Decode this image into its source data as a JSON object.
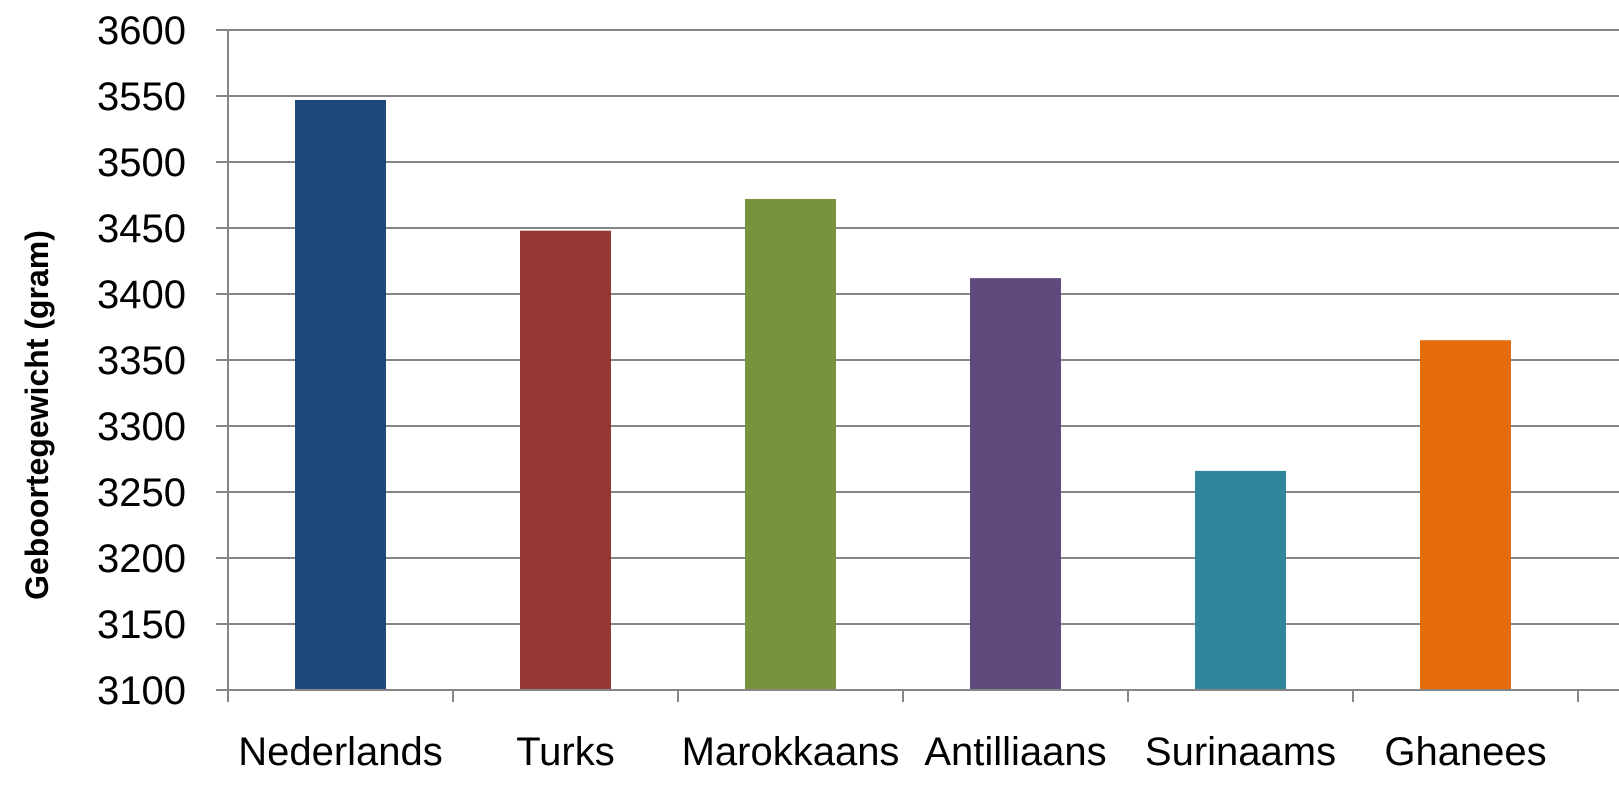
{
  "chart_data": {
    "type": "bar",
    "title": "",
    "xlabel": "",
    "ylabel": "Geboortegewicht (gram)",
    "categories": [
      "Nederlands",
      "Turks",
      "Marokkaans",
      "Antilliaans",
      "Surinaams",
      "Ghanees"
    ],
    "values": [
      3547,
      3448,
      3472,
      3412,
      3266,
      3365
    ],
    "colors": [
      "#1F497D",
      "#953735",
      "#77933C",
      "#604A7B",
      "#31859C",
      "#E46C0A"
    ],
    "ylim": [
      3100,
      3600
    ],
    "yticks": [
      3100,
      3150,
      3200,
      3250,
      3300,
      3350,
      3400,
      3450,
      3500,
      3550,
      3600
    ],
    "grid": true,
    "legend": "none"
  }
}
